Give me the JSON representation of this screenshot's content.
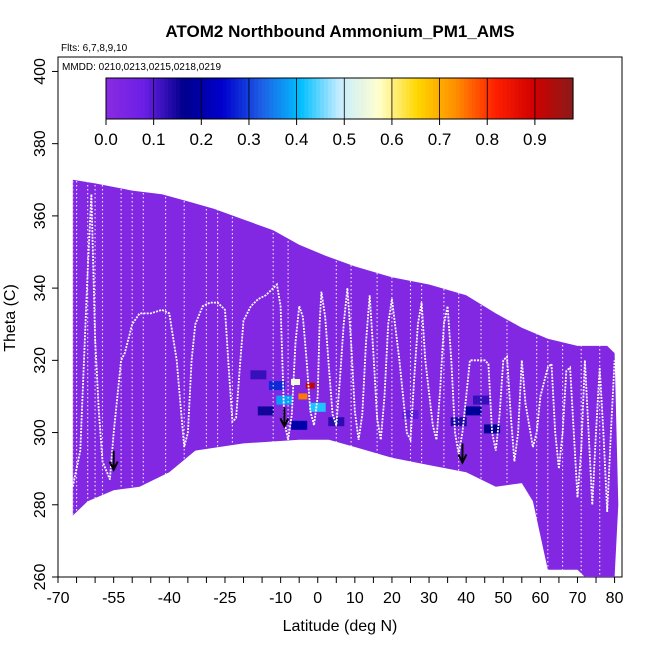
{
  "chart_data": {
    "type": "heatmap",
    "title": "ATOM2 Northbound Ammonium_PM1_AMS",
    "flights_label": "Flts: 6,7,8,9,10",
    "dates_label": "MMDD: 0210,0213,0215,0218,0219",
    "xlabel": "Latitude (deg N)",
    "ylabel": "Theta (C)",
    "xlim": [
      -70,
      82
    ],
    "ylim": [
      260,
      404
    ],
    "x_ticks": [
      -70,
      -55,
      -40,
      -25,
      -10,
      0,
      10,
      20,
      30,
      40,
      50,
      60,
      70,
      80
    ],
    "y_ticks": [
      260,
      280,
      300,
      320,
      340,
      360,
      380,
      400
    ],
    "colorbar": {
      "ticks": [
        0.0,
        0.1,
        0.2,
        0.3,
        0.4,
        0.5,
        0.6,
        0.7,
        0.8,
        0.9
      ],
      "tick_labels": [
        "0.0",
        "0.1",
        "0.2",
        "0.3",
        "0.4",
        "0.5",
        "0.6",
        "0.7",
        "0.8",
        "0.9"
      ],
      "range": [
        0.0,
        0.98
      ],
      "colors": [
        "#8a2be2",
        "#6a1ee6",
        "#00008b",
        "#0000cd",
        "#1e5fe6",
        "#00bfff",
        "#c6ecff",
        "#ffffd0",
        "#ffd700",
        "#ff8c00",
        "#ff2000",
        "#d00000",
        "#8b1a1a"
      ]
    },
    "background_value": 0.02,
    "top_boundary": [
      [
        -66,
        370
      ],
      [
        -60,
        369
      ],
      [
        -50,
        367
      ],
      [
        -42,
        366
      ],
      [
        -35,
        364
      ],
      [
        -28,
        362
      ],
      [
        -20,
        359
      ],
      [
        -12,
        356
      ],
      [
        -5,
        352
      ],
      [
        2,
        349
      ],
      [
        10,
        346
      ],
      [
        20,
        343
      ],
      [
        30,
        341
      ],
      [
        40,
        338
      ],
      [
        48,
        333
      ],
      [
        55,
        329
      ],
      [
        62,
        326
      ],
      [
        70,
        324
      ],
      [
        78,
        324
      ],
      [
        80,
        322
      ]
    ],
    "bottom_boundary": [
      [
        -66,
        277
      ],
      [
        -62,
        281
      ],
      [
        -55,
        284
      ],
      [
        -48,
        285
      ],
      [
        -40,
        289
      ],
      [
        -33,
        295
      ],
      [
        -20,
        297
      ],
      [
        -5,
        298
      ],
      [
        3,
        298
      ],
      [
        10,
        296
      ],
      [
        20,
        293
      ],
      [
        30,
        291
      ],
      [
        40,
        289
      ],
      [
        48,
        285
      ],
      [
        55,
        286
      ],
      [
        58,
        281
      ],
      [
        62,
        262
      ],
      [
        70,
        262
      ],
      [
        72,
        260
      ],
      [
        80,
        260
      ],
      [
        81,
        280
      ]
    ],
    "hotspots": [
      {
        "lat": -4,
        "theta": 310,
        "value": 0.75
      },
      {
        "lat": -2,
        "theta": 313,
        "value": 0.92
      },
      {
        "lat": -6,
        "theta": 314,
        "value": 0.55
      },
      {
        "lat": -9,
        "theta": 309,
        "value": 0.38
      },
      {
        "lat": -11,
        "theta": 313,
        "value": 0.28
      },
      {
        "lat": 0,
        "theta": 307,
        "value": 0.42
      },
      {
        "lat": -14,
        "theta": 306,
        "value": 0.15
      },
      {
        "lat": 5,
        "theta": 303,
        "value": 0.13
      },
      {
        "lat": -5,
        "theta": 302,
        "value": 0.2
      },
      {
        "lat": -16,
        "theta": 316,
        "value": 0.12
      },
      {
        "lat": 42,
        "theta": 306,
        "value": 0.18
      },
      {
        "lat": 38,
        "theta": 303,
        "value": 0.14
      },
      {
        "lat": 47,
        "theta": 301,
        "value": 0.16
      },
      {
        "lat": 44,
        "theta": 309,
        "value": 0.12
      },
      {
        "lat": 25,
        "theta": 305,
        "value": 0.09
      }
    ],
    "flight_track": [
      [
        -66,
        285
      ],
      [
        -64,
        295
      ],
      [
        -63,
        320
      ],
      [
        -62,
        345
      ],
      [
        -61,
        366
      ],
      [
        -60,
        326
      ],
      [
        -59,
        306
      ],
      [
        -58,
        292
      ],
      [
        -56,
        287
      ],
      [
        -55,
        300
      ],
      [
        -53,
        320
      ],
      [
        -52,
        322
      ],
      [
        -50,
        330
      ],
      [
        -48,
        333
      ],
      [
        -45,
        333
      ],
      [
        -42,
        334
      ],
      [
        -40,
        333
      ],
      [
        -38,
        320
      ],
      [
        -37,
        308
      ],
      [
        -36,
        296
      ],
      [
        -35,
        300
      ],
      [
        -34,
        320
      ],
      [
        -33,
        330
      ],
      [
        -31,
        335
      ],
      [
        -29,
        336
      ],
      [
        -27,
        336
      ],
      [
        -25,
        334
      ],
      [
        -24,
        318
      ],
      [
        -23,
        303
      ],
      [
        -22,
        304
      ],
      [
        -21,
        318
      ],
      [
        -20,
        331
      ],
      [
        -18,
        335
      ],
      [
        -16,
        337
      ],
      [
        -14,
        338
      ],
      [
        -12,
        340
      ],
      [
        -11,
        341
      ],
      [
        -10,
        335
      ],
      [
        -9,
        303
      ],
      [
        -8,
        298
      ],
      [
        -7,
        305
      ],
      [
        -6,
        325
      ],
      [
        -5,
        335
      ],
      [
        -4,
        332
      ],
      [
        -3,
        320
      ],
      [
        -2,
        306
      ],
      [
        -1,
        302
      ],
      [
        0,
        310
      ],
      [
        0.5,
        330
      ],
      [
        1,
        339
      ],
      [
        2,
        332
      ],
      [
        3,
        318
      ],
      [
        4,
        305
      ],
      [
        5,
        302
      ],
      [
        6,
        315
      ],
      [
        7,
        330
      ],
      [
        8,
        340
      ],
      [
        9,
        325
      ],
      [
        10,
        306
      ],
      [
        11,
        298
      ],
      [
        12,
        305
      ],
      [
        13,
        325
      ],
      [
        14,
        338
      ],
      [
        15,
        322
      ],
      [
        16,
        304
      ],
      [
        17,
        298
      ],
      [
        18,
        310
      ],
      [
        19,
        330
      ],
      [
        20,
        337
      ],
      [
        22,
        320
      ],
      [
        24,
        300
      ],
      [
        25,
        298
      ],
      [
        26,
        315
      ],
      [
        27,
        330
      ],
      [
        28,
        336
      ],
      [
        29,
        320
      ],
      [
        31,
        302
      ],
      [
        32,
        298
      ],
      [
        33,
        312
      ],
      [
        34,
        330
      ],
      [
        35,
        335
      ],
      [
        36,
        320
      ],
      [
        37,
        300
      ],
      [
        38,
        294
      ],
      [
        39,
        300
      ],
      [
        40,
        310
      ],
      [
        41,
        320
      ],
      [
        42,
        320
      ],
      [
        44,
        320
      ],
      [
        45,
        320
      ],
      [
        46,
        319
      ],
      [
        47,
        300
      ],
      [
        48,
        295
      ],
      [
        49,
        305
      ],
      [
        50,
        320
      ],
      [
        51,
        321
      ],
      [
        52,
        305
      ],
      [
        53,
        292
      ],
      [
        54,
        300
      ],
      [
        55,
        320
      ],
      [
        56,
        308
      ],
      [
        58,
        296
      ],
      [
        59,
        300
      ],
      [
        60,
        310
      ],
      [
        62,
        318
      ],
      [
        63,
        319
      ],
      [
        64,
        300
      ],
      [
        65,
        290
      ],
      [
        66,
        300
      ],
      [
        67,
        317
      ],
      [
        68,
        318
      ],
      [
        69,
        300
      ],
      [
        70,
        282
      ],
      [
        71,
        295
      ],
      [
        72,
        320
      ],
      [
        73,
        300
      ],
      [
        74,
        280
      ],
      [
        75,
        300
      ],
      [
        76,
        318
      ],
      [
        77,
        300
      ],
      [
        78,
        278
      ],
      [
        79,
        300
      ],
      [
        80,
        320
      ]
    ],
    "vertical_profiles": [
      -66,
      -65,
      -62,
      -60,
      -58,
      -53,
      -50,
      -47,
      -41,
      -36,
      -30,
      -27,
      -23,
      -12,
      -8,
      5,
      9,
      16,
      20,
      25,
      28,
      34,
      38,
      44,
      51,
      59,
      62,
      66,
      71,
      76
    ],
    "arrows": [
      [
        -55,
        290
      ],
      [
        -9,
        302
      ],
      [
        39,
        292
      ]
    ]
  }
}
